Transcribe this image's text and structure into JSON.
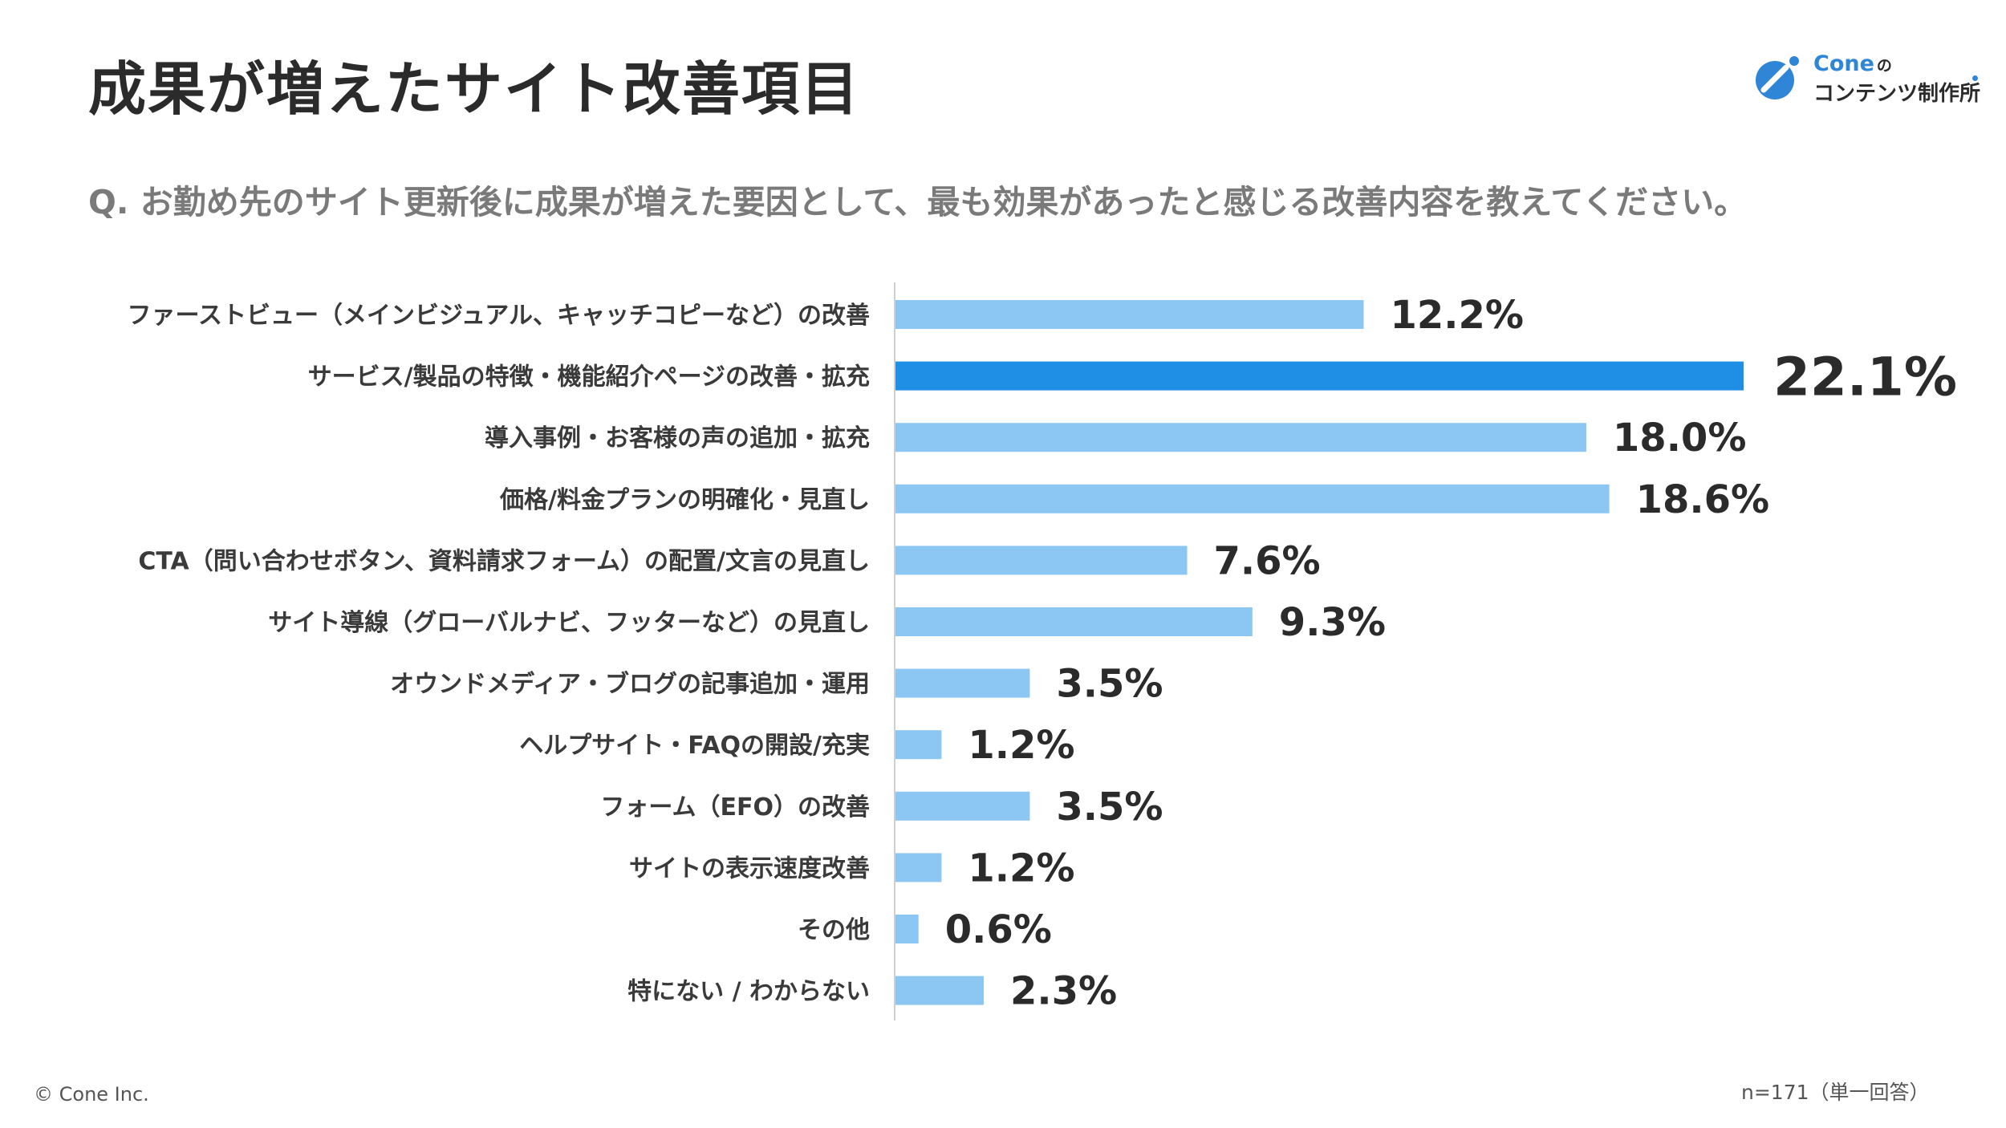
{
  "page": {
    "title": "成果が増えたサイト改善項目",
    "question": "Q. お勤め先のサイト更新後に成果が増えた要因として、最も効果があったと感じる改善内容を教えてください。",
    "copyright": "© Cone Inc.",
    "sample_note": "n=171（単一回答）"
  },
  "logo": {
    "brand": "Cone",
    "brand_suffix": "の",
    "subtitle": "コンテンツ制作所"
  },
  "colors": {
    "highlight_bar": "#1f8fe5",
    "bar": "#8cc6f2",
    "axis": "#cfcfcf",
    "label_text": "#3a3a3a",
    "value_text": "#2b2b2b",
    "title_text": "#2b2b2b",
    "question_text": "#7a7a7a",
    "brand": "#2f86d6"
  },
  "chart_data": {
    "type": "bar",
    "orientation": "horizontal",
    "title": "成果が増えたサイト改善項目",
    "xlabel": "",
    "ylabel": "",
    "unit": "%",
    "xlim": [
      0,
      22.1
    ],
    "grid": false,
    "highlight_index": 1,
    "categories": [
      "ファーストビュー（メインビジュアル、キャッチコピーなど）の改善",
      "サービス/製品の特徴・機能紹介ページの改善・拡充",
      "導入事例・お客様の声の追加・拡充",
      "価格/料金プランの明確化・見直し",
      "CTA（問い合わせボタン、資料請求フォーム）の配置/文言の見直し",
      "サイト導線（グローバルナビ、フッターなど）の見直し",
      "オウンドメディア・ブログの記事追加・運用",
      "ヘルプサイト・FAQの開設/充実",
      "フォーム（EFO）の改善",
      "サイトの表示速度改善",
      "その他",
      "特にない / わからない"
    ],
    "values": [
      12.2,
      22.1,
      18.0,
      18.6,
      7.6,
      9.3,
      3.5,
      1.2,
      3.5,
      1.2,
      0.6,
      2.3
    ],
    "value_labels": [
      "12.2%",
      "22.1%",
      "18.0%",
      "18.6%",
      "7.6%",
      "9.3%",
      "3.5%",
      "1.2%",
      "3.5%",
      "1.2%",
      "0.6%",
      "2.3%"
    ]
  }
}
